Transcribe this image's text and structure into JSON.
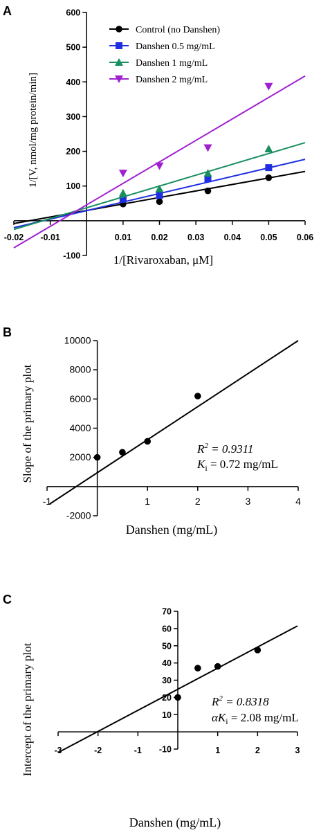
{
  "panels": [
    {
      "letter": "A",
      "type": "line",
      "xlabel": "1/[Rivaroxaban, μM]",
      "ylabel": "1/[V, nmol/mg protein/min]",
      "xlim": [
        -0.02,
        0.06
      ],
      "ylim": [
        -100,
        600
      ],
      "xticks": [
        -0.02,
        -0.01,
        0.01,
        0.02,
        0.03,
        0.04,
        0.05,
        0.06
      ],
      "xtick_labels": [
        "-0.02",
        "-0.01",
        "0.01",
        "0.02",
        "0.03",
        "0.04",
        "0.05",
        "0.06"
      ],
      "yticks": [
        -100,
        100,
        200,
        300,
        400,
        500,
        600
      ],
      "ytick_labels": [
        "-100",
        "100",
        "200",
        "300",
        "400",
        "500",
        "600"
      ],
      "legend_position": "top-left",
      "series": [
        {
          "name": "Control (no Danshen)",
          "color": "#000000",
          "marker": "circle",
          "x": [
            0.01,
            0.02,
            0.0333,
            0.05
          ],
          "y": [
            48,
            55,
            86,
            124
          ],
          "fit": {
            "x": [
              -0.02,
              0.06
            ],
            "y": [
              -8,
              142
            ]
          }
        },
        {
          "name": "Danshen 0.5 mg/mL",
          "color": "#1f2fe0",
          "marker": "square",
          "x": [
            0.01,
            0.02,
            0.0333,
            0.05
          ],
          "y": [
            62,
            73,
            121,
            153
          ],
          "fit": {
            "x": [
              -0.02,
              0.06
            ],
            "y": [
              -20,
              177
            ]
          }
        },
        {
          "name": "Danshen 1 mg/mL",
          "color": "#1a9060",
          "marker": "triangle-up",
          "x": [
            0.01,
            0.02,
            0.0333,
            0.05
          ],
          "y": [
            80,
            92,
            137,
            207
          ],
          "fit": {
            "x": [
              -0.02,
              0.06
            ],
            "y": [
              -25,
              225
            ]
          }
        },
        {
          "name": "Danshen 2 mg/mL",
          "color": "#a020d0",
          "marker": "triangle-down",
          "x": [
            0.01,
            0.02,
            0.0333,
            0.05
          ],
          "y": [
            137,
            158,
            210,
            387
          ],
          "fit": {
            "x": [
              -0.02,
              0.06
            ],
            "y": [
              -78,
              417
            ]
          }
        }
      ]
    },
    {
      "letter": "B",
      "type": "scatter",
      "xlabel": "Danshen (mg/mL)",
      "ylabel": "Slope of the primary plot",
      "xlim": [
        -1,
        4
      ],
      "ylim": [
        -2000,
        10000
      ],
      "xticks": [
        -1,
        1,
        2,
        3,
        4
      ],
      "xtick_labels": [
        "-1",
        "1",
        "2",
        "3",
        "4"
      ],
      "yticks": [
        -2000,
        2000,
        4000,
        6000,
        8000,
        10000
      ],
      "ytick_labels": [
        "-2000",
        "2000",
        "4000",
        "6000",
        "8000",
        "10000"
      ],
      "series": [
        {
          "color": "#000000",
          "marker": "circle",
          "x": [
            0,
            0.5,
            1,
            2
          ],
          "y": [
            2000,
            2350,
            3100,
            6200
          ],
          "fit": {
            "x": [
              -0.95,
              4
            ],
            "y": [
              -1200,
              10000
            ]
          }
        }
      ],
      "annotation": {
        "r2_label": "R",
        "r2_sup": "2",
        "r2_value": " = 0.9311",
        "k_label": "K",
        "k_sub": "i",
        "k_value": " = 0.72 mg/mL"
      }
    },
    {
      "letter": "C",
      "type": "scatter",
      "xlabel": "Danshen (mg/mL)",
      "ylabel": "Intercept of the primary plot",
      "xlim": [
        -3,
        3
      ],
      "ylim": [
        -10,
        70
      ],
      "xticks": [
        -3,
        -2,
        -1,
        1,
        2,
        3
      ],
      "xtick_labels": [
        "-3",
        "-2",
        "-1",
        "1",
        "2",
        "3"
      ],
      "yticks": [
        -10,
        10,
        20,
        30,
        40,
        50,
        60,
        70
      ],
      "ytick_labels": [
        "-10",
        "10",
        "20",
        "30",
        "40",
        "50",
        "60",
        "70"
      ],
      "series": [
        {
          "color": "#000000",
          "marker": "circle",
          "x": [
            0,
            0.5,
            1,
            2
          ],
          "y": [
            20,
            37,
            38,
            47.5
          ],
          "fit": {
            "x": [
              -3.0,
              3.0
            ],
            "y": [
              -12,
              61.5
            ]
          }
        }
      ],
      "annotation": {
        "r2_label": "R",
        "r2_sup": "2",
        "r2_value": " = 0.8318",
        "k_label": "αK",
        "k_sub": "i",
        "k_value": " = 2.08 mg/mL"
      }
    }
  ]
}
